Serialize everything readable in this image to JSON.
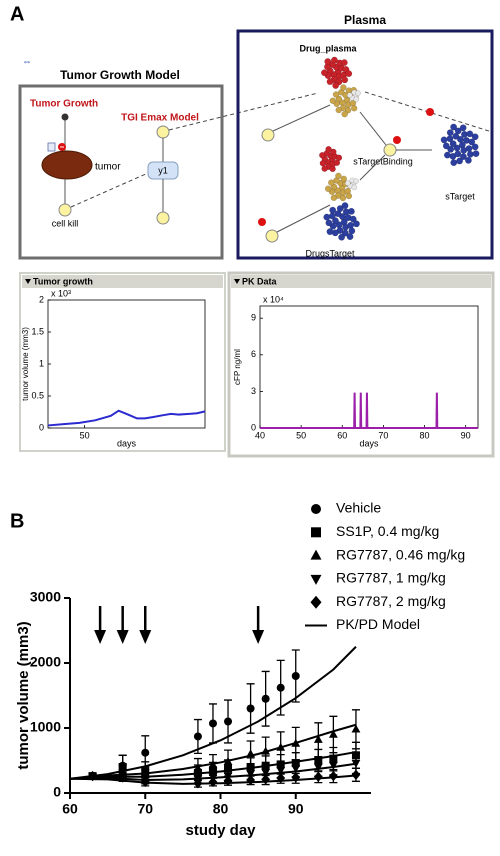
{
  "panels": {
    "a": "A",
    "b": "B"
  },
  "diagram": {
    "tumor_model": {
      "title": "Tumor Growth Model",
      "tumor_growth": "Tumor Growth",
      "tgi_emax": "TGI Emax Model",
      "tumor": "tumor",
      "cell_kill": "cell kill",
      "y1": "y1"
    },
    "plasma": {
      "title": "Plasma",
      "drug_plasma": "Drug_plasma",
      "starget_binding": "sTargetBinding",
      "starget": "sTarget",
      "drugs_target": "DrugsTarget"
    }
  },
  "chart_data": [
    {
      "type": "line",
      "title": "Tumor growth",
      "y_label": "tumor volume (mm3)",
      "x_label": "days",
      "y_multiplier": "x 10³",
      "xlim": [
        36,
        96
      ],
      "xticks": [
        50
      ],
      "ylim": [
        0,
        2
      ],
      "yticks": [
        0,
        0.5,
        1,
        1.5,
        2
      ],
      "series": [
        {
          "color": "#2a2ad0",
          "x": [
            36,
            42,
            48,
            54,
            60,
            63,
            66,
            70,
            73,
            76,
            80,
            83,
            86,
            90,
            93,
            96
          ],
          "values": [
            0.04,
            0.06,
            0.08,
            0.12,
            0.19,
            0.27,
            0.22,
            0.15,
            0.15,
            0.17,
            0.2,
            0.22,
            0.21,
            0.22,
            0.23,
            0.26
          ]
        }
      ]
    },
    {
      "type": "line",
      "title": "PK Data",
      "y_label": "cFP ng/ml",
      "x_label": "days",
      "y_multiplier": "x 10⁴",
      "xlim": [
        40,
        93
      ],
      "xticks": [
        40,
        50,
        60,
        70,
        80,
        90
      ],
      "ylim": [
        0,
        10
      ],
      "yticks": [
        0,
        3,
        6,
        9
      ],
      "series": [
        {
          "color": "#9b1fa8",
          "x": [
            40,
            62.9,
            63,
            63.1,
            64.4,
            64.5,
            64.6,
            65.9,
            66,
            66.1,
            82.9,
            83,
            83.1,
            93
          ],
          "values": [
            0,
            0,
            2.9,
            0,
            0,
            2.9,
            0,
            0,
            2.9,
            0,
            0,
            2.9,
            0,
            0
          ]
        }
      ]
    },
    {
      "type": "scatter",
      "x_label": "study day",
      "y_label": "tumor volume (mm3)",
      "xlim": [
        60,
        100
      ],
      "xticks": [
        60,
        70,
        80,
        90
      ],
      "ylim": [
        0,
        3000
      ],
      "yticks": [
        0,
        1000,
        2000,
        3000
      ],
      "dose_days": [
        64,
        67,
        70,
        85
      ],
      "series": [
        {
          "name": "Vehicle",
          "marker": "circle",
          "color": "#000000",
          "x": [
            63,
            67,
            70,
            77,
            79,
            81,
            84,
            86,
            88,
            90
          ],
          "values": [
            260,
            420,
            620,
            870,
            1070,
            1100,
            1300,
            1450,
            1620,
            1800
          ],
          "errors": [
            20,
            160,
            260,
            260,
            300,
            330,
            380,
            420,
            420,
            400
          ]
        },
        {
          "name": "SS1P, 0.4 mg/kg",
          "marker": "square",
          "color": "#000000",
          "x": [
            63,
            67,
            70,
            77,
            79,
            81,
            84,
            86,
            88,
            90,
            93,
            95,
            98
          ],
          "values": [
            260,
            400,
            330,
            310,
            350,
            380,
            400,
            420,
            440,
            460,
            500,
            520,
            580
          ],
          "errors": [
            20,
            180,
            150,
            120,
            120,
            130,
            140,
            150,
            150,
            160,
            170,
            180,
            200
          ]
        },
        {
          "name": "RG7787, 0.46 mg/kg",
          "marker": "triangle-up",
          "color": "#000000",
          "x": [
            63,
            67,
            70,
            77,
            79,
            81,
            84,
            86,
            88,
            90,
            93,
            95,
            98
          ],
          "values": [
            260,
            320,
            280,
            380,
            430,
            480,
            600,
            640,
            700,
            760,
            820,
            900,
            980
          ],
          "errors": [
            20,
            120,
            120,
            150,
            160,
            180,
            200,
            220,
            240,
            250,
            260,
            280,
            300
          ]
        },
        {
          "name": "RG7787, 1 mg/kg",
          "marker": "triangle-down",
          "color": "#000000",
          "x": [
            63,
            67,
            70,
            77,
            79,
            81,
            84,
            86,
            88,
            90,
            93,
            95,
            98
          ],
          "values": [
            260,
            280,
            220,
            230,
            250,
            270,
            300,
            320,
            350,
            380,
            400,
            430,
            460
          ],
          "errors": [
            20,
            80,
            80,
            80,
            90,
            90,
            100,
            110,
            120,
            130,
            140,
            150,
            160
          ]
        },
        {
          "name": "RG7787, 2 mg/kg",
          "marker": "diamond",
          "color": "#000000",
          "x": [
            63,
            67,
            70,
            77,
            79,
            81,
            84,
            86,
            88,
            90,
            93,
            95,
            98
          ],
          "values": [
            260,
            240,
            170,
            150,
            170,
            190,
            200,
            210,
            230,
            240,
            250,
            260,
            280
          ],
          "errors": [
            20,
            60,
            60,
            60,
            60,
            70,
            70,
            80,
            80,
            90,
            90,
            100,
            100
          ]
        }
      ],
      "model": {
        "name": "PK/PD Model",
        "color": "#000000",
        "x": [
          60,
          65,
          70,
          75,
          80,
          85,
          90,
          95,
          98
        ],
        "curves": [
          [
            220,
            290,
            410,
            580,
            810,
            1100,
            1460,
            1900,
            2250
          ],
          [
            220,
            270,
            300,
            370,
            470,
            600,
            770,
            950,
            1050
          ],
          [
            220,
            250,
            250,
            280,
            330,
            400,
            480,
            570,
            630
          ],
          [
            220,
            230,
            200,
            210,
            240,
            280,
            330,
            400,
            450
          ],
          [
            220,
            210,
            160,
            140,
            150,
            170,
            200,
            240,
            270
          ]
        ]
      }
    }
  ]
}
